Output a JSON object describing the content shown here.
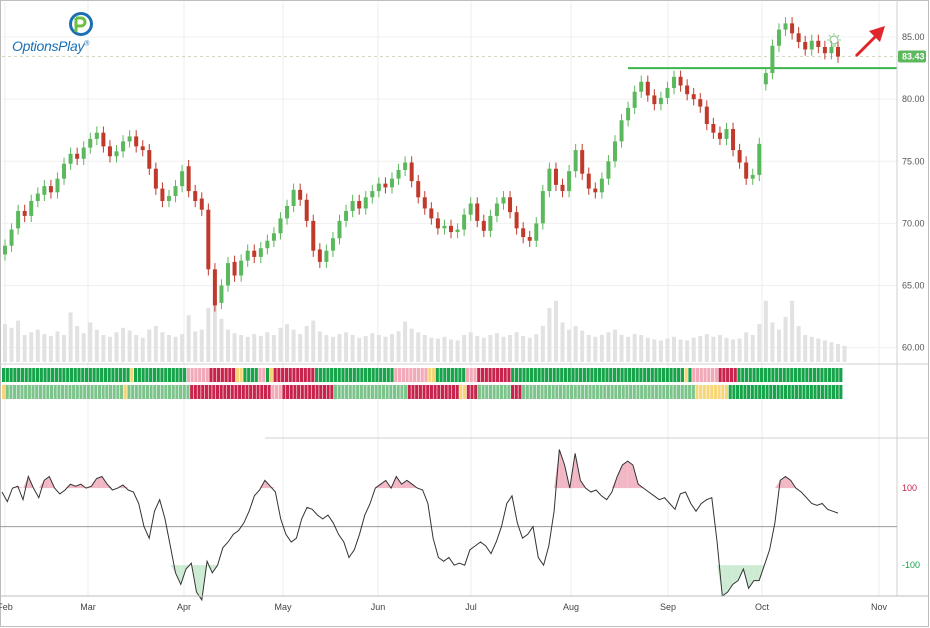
{
  "branding": {
    "logo_text": "OptionsPlay",
    "logo_mark": "®"
  },
  "chart_data": [
    {
      "type": "candlestick",
      "ylim": [
        59,
        87.5
      ],
      "y_ticks": [
        60,
        65,
        70,
        75,
        80,
        85
      ],
      "x_ticks": [
        "Feb",
        "Mar",
        "Apr",
        "May",
        "Jun",
        "Jul",
        "Aug",
        "Sep",
        "Oct",
        "Nov"
      ],
      "last_price": 83.43,
      "resistance_level": 82.5,
      "annotations": {
        "trend_arrow": "up-right",
        "idea_icon": "lightbulb-icon"
      },
      "colors": {
        "up": "#5cb85c",
        "down": "#c0392b",
        "volume": "#e2e2e2",
        "resistance": "#3ab54a",
        "arrow": "#e0262b",
        "badge": "#5cb85c"
      },
      "closes": [
        68.2,
        69.5,
        71.0,
        70.6,
        71.8,
        72.4,
        73.0,
        72.5,
        73.6,
        74.8,
        75.6,
        75.2,
        76.1,
        76.8,
        77.3,
        76.2,
        75.4,
        75.8,
        76.6,
        77.0,
        76.2,
        75.9,
        74.4,
        72.8,
        71.8,
        72.2,
        73.0,
        74.2,
        72.6,
        71.8,
        71.1,
        66.3,
        63.4,
        65.0,
        66.8,
        65.8,
        67.0,
        67.8,
        67.3,
        68.0,
        68.6,
        69.2,
        70.4,
        71.4,
        72.7,
        71.9,
        70.2,
        67.8,
        66.9,
        67.8,
        68.8,
        70.2,
        71.0,
        71.8,
        71.2,
        72.1,
        72.6,
        73.2,
        72.9,
        73.6,
        74.3,
        74.9,
        73.4,
        72.1,
        71.2,
        70.4,
        69.6,
        69.8,
        69.3,
        69.5,
        70.7,
        71.6,
        70.2,
        69.4,
        70.6,
        71.6,
        72.1,
        70.9,
        69.6,
        68.9,
        68.6,
        70.0,
        72.6,
        74.4,
        73.1,
        72.6,
        74.2,
        75.9,
        74.0,
        72.8,
        72.5,
        73.6,
        75.0,
        76.6,
        78.3,
        79.3,
        80.6,
        81.4,
        80.3,
        79.6,
        80.1,
        80.9,
        81.8,
        81.1,
        80.4,
        80.0,
        79.4,
        78.0,
        77.3,
        76.8,
        77.6,
        75.9,
        74.9,
        73.6,
        73.9,
        76.4,
        82.1,
        84.3,
        85.6,
        86.1,
        85.3,
        84.6,
        84.0,
        84.7,
        84.2,
        83.7,
        84.2,
        83.43
      ],
      "opens": [
        67.5,
        68.2,
        69.6,
        71.0,
        70.6,
        71.8,
        72.3,
        73.0,
        72.5,
        73.6,
        74.8,
        75.6,
        75.2,
        76.1,
        76.8,
        77.3,
        76.2,
        75.4,
        75.8,
        76.6,
        77.0,
        76.2,
        75.9,
        74.4,
        72.8,
        71.8,
        72.2,
        73.0,
        74.6,
        72.6,
        72.0,
        71.1,
        66.3,
        63.6,
        65.0,
        66.9,
        65.8,
        67.0,
        67.8,
        67.3,
        68.0,
        68.6,
        69.2,
        70.4,
        71.4,
        72.7,
        71.9,
        70.2,
        67.9,
        66.9,
        67.8,
        68.8,
        70.2,
        71.0,
        71.8,
        71.2,
        72.1,
        72.6,
        73.2,
        72.9,
        73.6,
        74.3,
        74.9,
        73.4,
        72.1,
        71.2,
        70.4,
        69.6,
        69.8,
        69.3,
        69.5,
        70.7,
        71.6,
        70.2,
        69.4,
        70.6,
        71.6,
        72.1,
        70.9,
        69.6,
        68.9,
        68.6,
        70.0,
        72.6,
        74.4,
        73.1,
        72.6,
        74.2,
        75.9,
        74.0,
        72.8,
        72.5,
        73.6,
        75.0,
        76.6,
        78.3,
        79.3,
        80.6,
        81.4,
        80.3,
        79.6,
        80.1,
        80.9,
        81.8,
        81.1,
        80.4,
        80.0,
        79.4,
        78.0,
        77.3,
        76.8,
        77.6,
        75.9,
        74.9,
        73.6,
        73.9,
        81.2,
        82.1,
        84.3,
        85.6,
        86.1,
        85.3,
        84.6,
        84.0,
        84.7,
        84.2,
        83.7,
        84.2
      ],
      "volume": [
        0.42,
        0.38,
        0.46,
        0.3,
        0.33,
        0.36,
        0.31,
        0.29,
        0.34,
        0.3,
        0.55,
        0.4,
        0.32,
        0.44,
        0.36,
        0.3,
        0.28,
        0.33,
        0.38,
        0.35,
        0.3,
        0.27,
        0.36,
        0.4,
        0.33,
        0.3,
        0.28,
        0.31,
        0.52,
        0.34,
        0.36,
        0.6,
        0.75,
        0.48,
        0.36,
        0.32,
        0.3,
        0.28,
        0.31,
        0.29,
        0.33,
        0.3,
        0.38,
        0.42,
        0.36,
        0.31,
        0.4,
        0.46,
        0.34,
        0.3,
        0.28,
        0.31,
        0.33,
        0.3,
        0.27,
        0.29,
        0.32,
        0.3,
        0.28,
        0.31,
        0.34,
        0.45,
        0.37,
        0.33,
        0.3,
        0.27,
        0.26,
        0.28,
        0.25,
        0.24,
        0.3,
        0.33,
        0.29,
        0.27,
        0.3,
        0.32,
        0.28,
        0.3,
        0.33,
        0.29,
        0.27,
        0.31,
        0.4,
        0.6,
        0.68,
        0.44,
        0.36,
        0.4,
        0.35,
        0.3,
        0.28,
        0.3,
        0.33,
        0.36,
        0.3,
        0.28,
        0.31,
        0.3,
        0.27,
        0.25,
        0.24,
        0.26,
        0.28,
        0.25,
        0.24,
        0.27,
        0.29,
        0.31,
        0.28,
        0.3,
        0.27,
        0.25,
        0.26,
        0.33,
        0.3,
        0.42,
        0.68,
        0.44,
        0.36,
        0.5,
        0.68,
        0.4,
        0.3,
        0.28,
        0.26,
        0.24,
        0.22,
        0.2,
        0.18
      ]
    },
    {
      "type": "heatmap",
      "rows": 2,
      "colors": {
        "G": "#16a34a",
        "L": "#7cc48b",
        "Y": "#f7d67a",
        "P": "#f2a9b8",
        "R": "#c8234c"
      },
      "row1_pattern": "GGGGGGGGGGGGGGGGGGGGGGGGGGGGGGGGGGYGGGGGGGGGGGGGGPPPPPPRRRRRRRYYGGGGPPGYRRRRRRRRRRRGGGGGGGGGGGGGGGGGGGGGPPPPPPPPPYYGGGGGGGGPPPRRRRRRRRRGGGGGGGGGGGGGGGGGGGGGGGGGGGGGGGGGGGGGGGGGGGGGGYGPPPPPPPRRRRRGGGGGGGGGGGGGGGGGGGGGGGGGGGG",
      "row2_pattern": "YLLLLLLLLLLLLLLLLLLLLLLLLLLLLLLLLYLLLLLLLLLLLLLLLLLRRRRRRRRRRRRRRRRRRRRRRPPPRRRRRRRRRRRRRRLLLLLLLLLLLLLLLLLLLLRRRRRRRRRRRRRRYYRRRLLLLLLLLLRRRLLLLLLLLLLLLLLLLLLLLLLLLLLLLLLLLLLLLLLLLLLLLLLLYYYYYYYYYGGGGGGGGGGGGGGGGGGGGGGGGGGGGGGG"
    },
    {
      "type": "line",
      "y_ticks": [
        100,
        -100
      ],
      "ylim": [
        -180,
        230
      ],
      "threshold_upper": 100,
      "threshold_lower": -100,
      "colors": {
        "line": "#333333",
        "overbought": "#f1b7c4",
        "oversold": "#cdebd2",
        "label_upper": "#c8234c",
        "label_lower": "#16a34a"
      },
      "values": [
        90,
        65,
        100,
        105,
        70,
        130,
        100,
        75,
        120,
        130,
        100,
        85,
        95,
        110,
        105,
        110,
        100,
        105,
        125,
        130,
        110,
        95,
        100,
        108,
        95,
        90,
        60,
        0,
        -30,
        40,
        70,
        20,
        -50,
        -120,
        -150,
        -110,
        -95,
        -170,
        -190,
        -90,
        -120,
        -100,
        -55,
        -40,
        -20,
        -10,
        10,
        40,
        80,
        95,
        120,
        105,
        90,
        20,
        -20,
        -40,
        -30,
        20,
        50,
        45,
        30,
        20,
        30,
        10,
        -20,
        -40,
        -80,
        -60,
        -20,
        30,
        60,
        100,
        110,
        120,
        100,
        130,
        110,
        120,
        110,
        100,
        95,
        60,
        -30,
        -80,
        -90,
        -80,
        -100,
        -95,
        -100,
        -60,
        -50,
        -40,
        -50,
        -70,
        -40,
        0,
        60,
        80,
        10,
        -30,
        -20,
        0,
        -80,
        -100,
        -50,
        40,
        200,
        160,
        100,
        190,
        120,
        100,
        90,
        95,
        80,
        70,
        90,
        130,
        160,
        170,
        160,
        110,
        100,
        90,
        80,
        70,
        75,
        60,
        45,
        85,
        90,
        60,
        40,
        60,
        70,
        75,
        -40,
        -180,
        -170,
        -150,
        -140,
        -110,
        -160,
        -140,
        -140,
        -100,
        -60,
        10,
        120,
        130,
        120,
        100,
        90,
        75,
        60,
        55,
        60,
        45,
        40,
        35
      ],
      "n_bars": 0
    }
  ]
}
